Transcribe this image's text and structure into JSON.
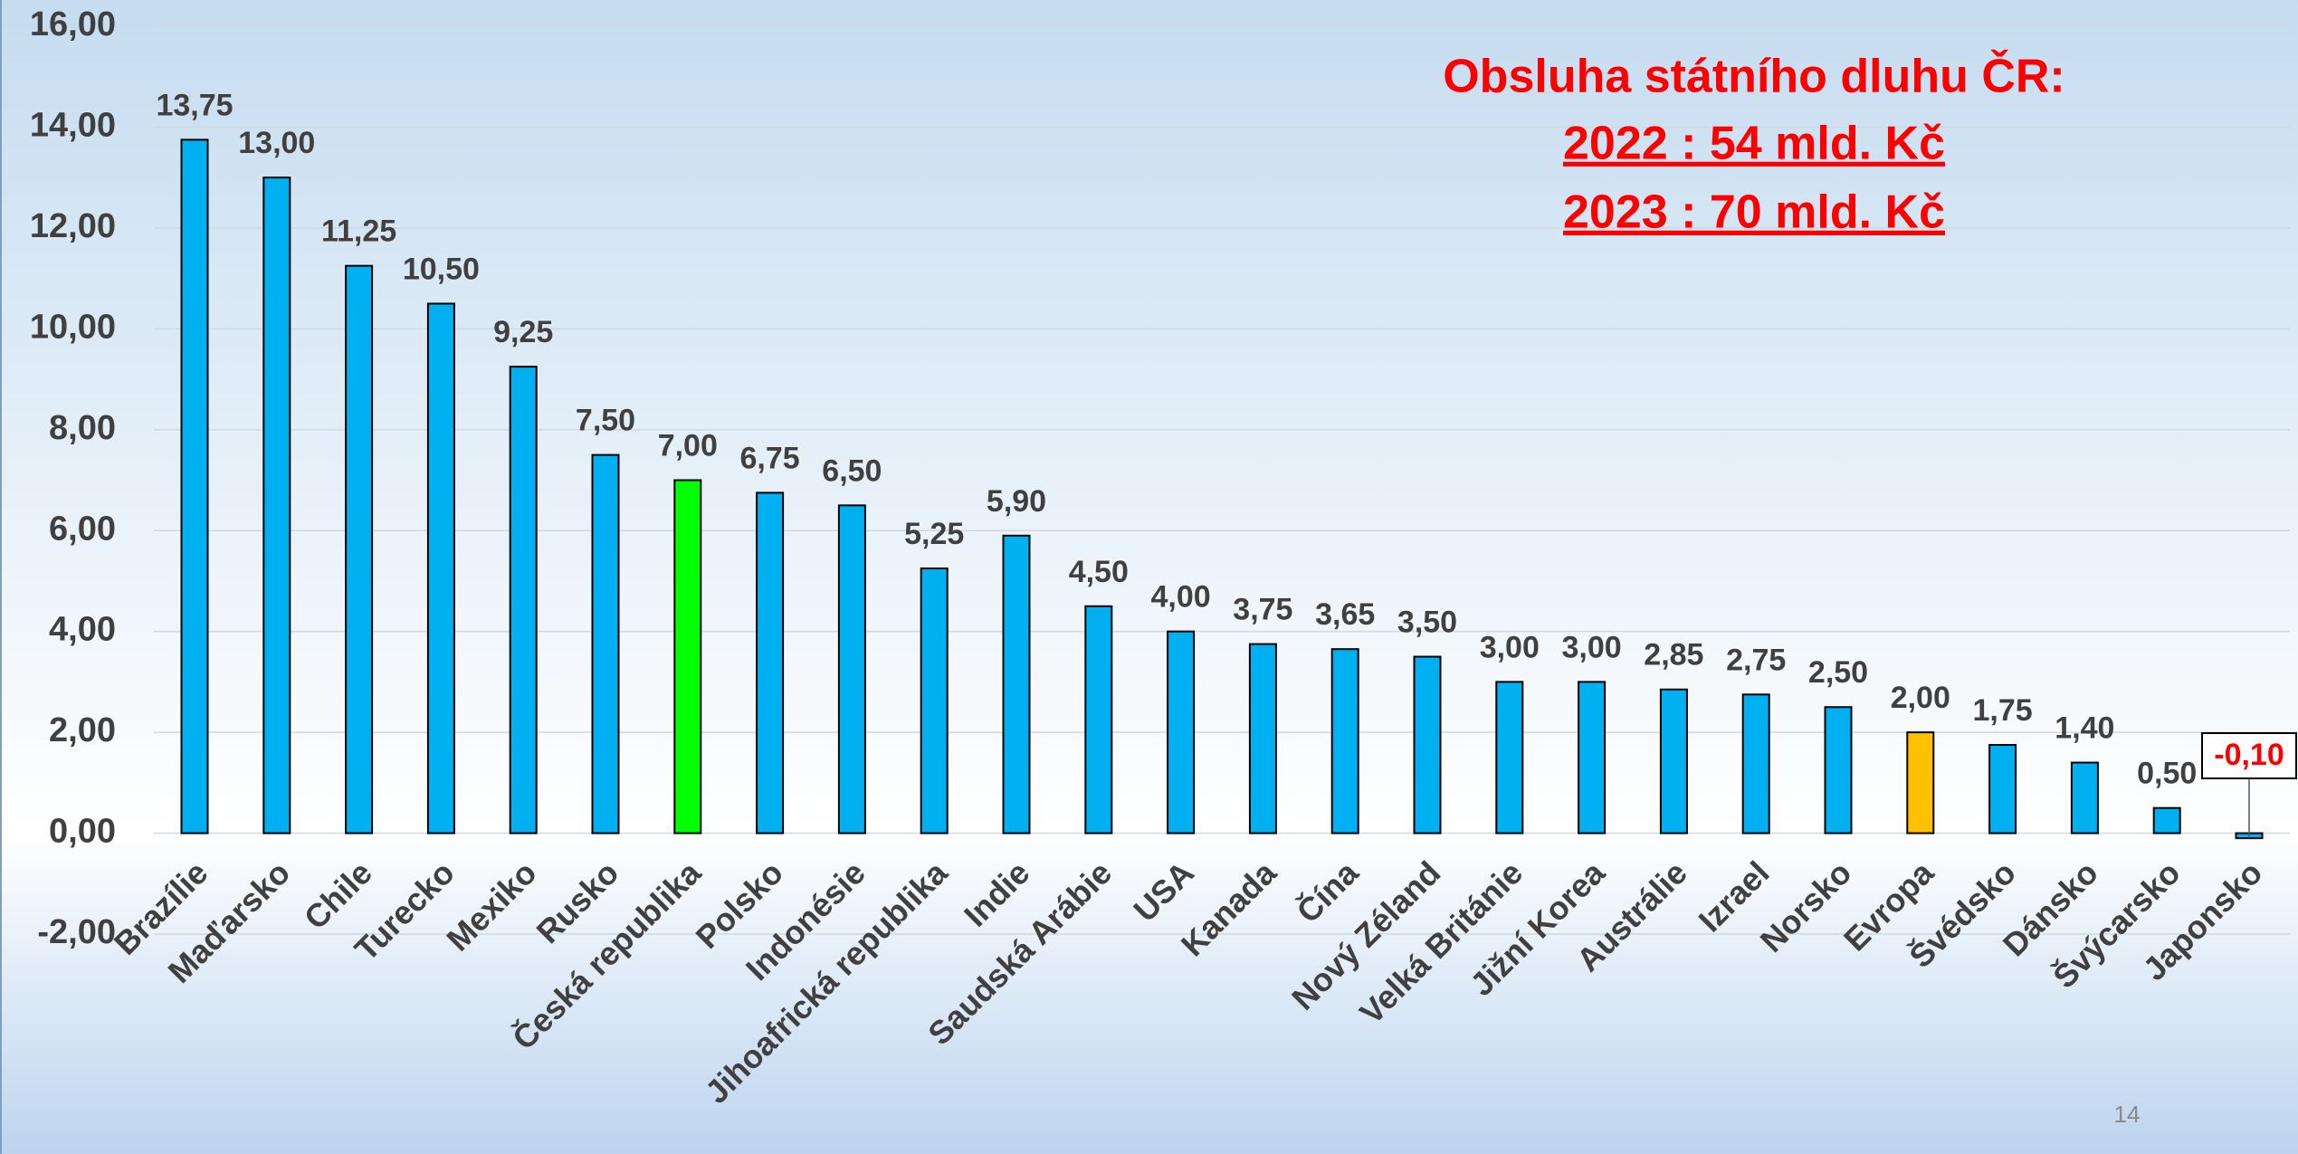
{
  "chart_data": {
    "type": "bar",
    "categories": [
      "Brazílie",
      "Maďarsko",
      "Chile",
      "Turecko",
      "Mexiko",
      "Rusko",
      "Česká republika",
      "Polsko",
      "Indonésie",
      "Jihoafrická republika",
      "Indie",
      "Saudská Arábie",
      "USA",
      "Kanada",
      "Čína",
      "Nový Zéland",
      "Velká Británie",
      "Jižní Korea",
      "Austrálie",
      "Izrael",
      "Norsko",
      "Evropa",
      "Švédsko",
      "Dánsko",
      "Švýcarsko",
      "Japonsko"
    ],
    "values": [
      13.75,
      13,
      11.25,
      10.5,
      9.25,
      7.5,
      7,
      6.75,
      6.5,
      5.25,
      5.9,
      4.5,
      4,
      3.75,
      3.65,
      3.5,
      3,
      3,
      2.85,
      2.75,
      2.5,
      2,
      1.75,
      1.4,
      0.5,
      -0.1
    ],
    "value_labels": [
      "13,75",
      "13,00",
      "11,25",
      "10,50",
      "9,25",
      "7,50",
      "7,00",
      "6,75",
      "6,50",
      "5,25",
      "5,90",
      "4,50",
      "4,00",
      "3,75",
      "3,65",
      "3,50",
      "3,00",
      "3,00",
      "2,85",
      "2,75",
      "2,50",
      "2,00",
      "1,75",
      "1,40",
      "0,50",
      "-0,10"
    ],
    "colors": [
      "#00b0f0",
      "#00b0f0",
      "#00b0f0",
      "#00b0f0",
      "#00b0f0",
      "#00b0f0",
      "#00ff00",
      "#00b0f0",
      "#00b0f0",
      "#00b0f0",
      "#00b0f0",
      "#00b0f0",
      "#00b0f0",
      "#00b0f0",
      "#00b0f0",
      "#00b0f0",
      "#00b0f0",
      "#00b0f0",
      "#00b0f0",
      "#00b0f0",
      "#00b0f0",
      "#ffc000",
      "#00b0f0",
      "#00b0f0",
      "#00b0f0",
      "#00b0f0"
    ],
    "ylim": [
      -2,
      16
    ],
    "yticks": [
      {
        "value": -2,
        "label": "-2,00"
      },
      {
        "value": 0,
        "label": "0,00"
      },
      {
        "value": 2,
        "label": "2,00"
      },
      {
        "value": 4,
        "label": "4,00"
      },
      {
        "value": 6,
        "label": "6,00"
      },
      {
        "value": 8,
        "label": "8,00"
      },
      {
        "value": 10,
        "label": "10,00"
      },
      {
        "value": 12,
        "label": "12,00"
      },
      {
        "value": 14,
        "label": "14,00"
      },
      {
        "value": 16,
        "label": "16,00"
      }
    ],
    "grid": true,
    "annotations": [
      "Obsluha státního dluhu ČR:",
      "2022 : 54 mld. Kč",
      "2023 : 70 mld. Kč"
    ],
    "page_number": "14"
  }
}
